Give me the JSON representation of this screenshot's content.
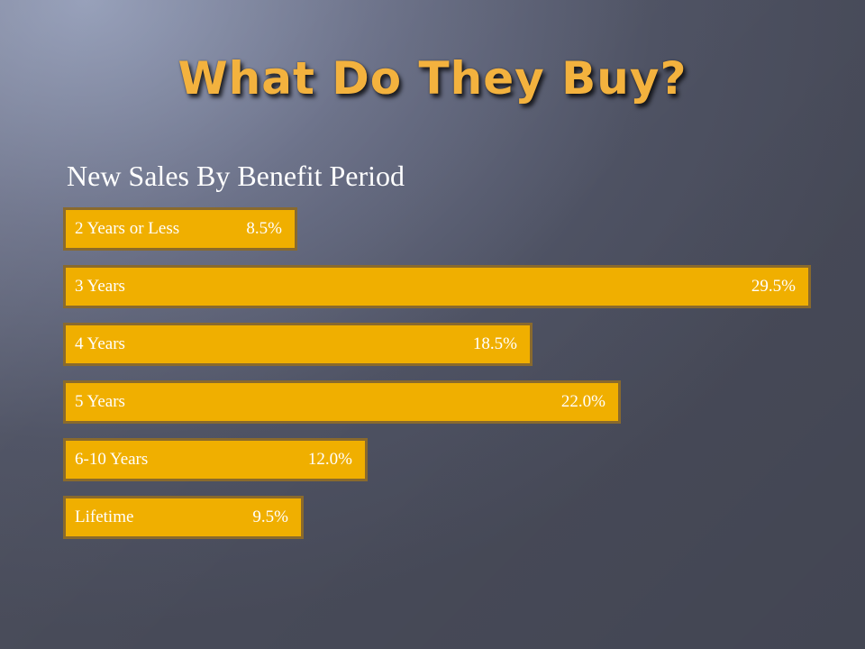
{
  "slide": {
    "title": "What Do They Buy?",
    "subtitle": "New Sales By Benefit Period"
  },
  "colors": {
    "bar_fill": "#f0af00",
    "bar_border": "#8a6a2c",
    "title": "#f3b23e",
    "text": "#ffffff"
  },
  "chart_data": {
    "type": "bar",
    "orientation": "horizontal",
    "title": "New Sales By Benefit Period",
    "categories": [
      "2 Years or Less",
      "3 Years",
      "4 Years",
      "5 Years",
      "6-10 Years",
      "Lifetime"
    ],
    "values": [
      8.5,
      29.5,
      18.5,
      22.0,
      12.0,
      9.5
    ],
    "value_labels": [
      "8.5%",
      "29.5%",
      "18.5%",
      "22.0%",
      "12.0%",
      "9.5%"
    ],
    "unit": "%",
    "legend": "none",
    "grid": false
  }
}
